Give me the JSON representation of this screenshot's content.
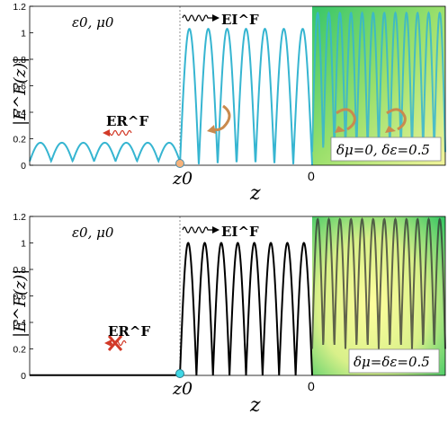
{
  "chart_data": [
    {
      "type": "line",
      "ylabel": "|E^F(z)|",
      "xlabel": "z",
      "ylim": [
        0,
        1.2
      ],
      "yticks": [
        0,
        0.2,
        0.4,
        0.6,
        0.8,
        1,
        1.2
      ],
      "xticks": [
        "z0",
        "0"
      ],
      "grid": false,
      "line_color": "#36B5D1",
      "region_labels": {
        "medium": "ε0, μ0",
        "incident": "EI^F",
        "reflected": "ER^F",
        "params": "δμ=0, δε=0.5"
      },
      "series": [
        {
          "region": "z < z0",
          "min": 0.03,
          "max": 0.17,
          "arches": 7
        },
        {
          "region": "z0 < z < 0",
          "min": 0.0,
          "max": 1.03,
          "arches": 7
        },
        {
          "region": "z > 0",
          "min": 0.1,
          "max": 1.15,
          "arches": 12
        }
      ]
    },
    {
      "type": "line",
      "ylabel": "|E^F(z)|",
      "xlabel": "z",
      "ylim": [
        0,
        1.2
      ],
      "yticks": [
        0,
        0.2,
        0.4,
        0.6,
        0.8,
        1,
        1.2
      ],
      "xticks": [
        "z0",
        "0"
      ],
      "grid": false,
      "line_color": "#000000",
      "region_labels": {
        "medium": "ε0, μ0",
        "incident": "EI^F",
        "reflected": "ER^F",
        "params": "δμ=δε=0.5"
      },
      "series": [
        {
          "region": "z < z0",
          "min": 0.0,
          "max": 0.003,
          "arches": 0
        },
        {
          "region": "z0 < z < 0",
          "min": 0.0,
          "max": 1.0,
          "arches": 8
        },
        {
          "region": "z > 0",
          "min": 0.2,
          "max": 1.18,
          "arches": 12
        }
      ]
    }
  ]
}
